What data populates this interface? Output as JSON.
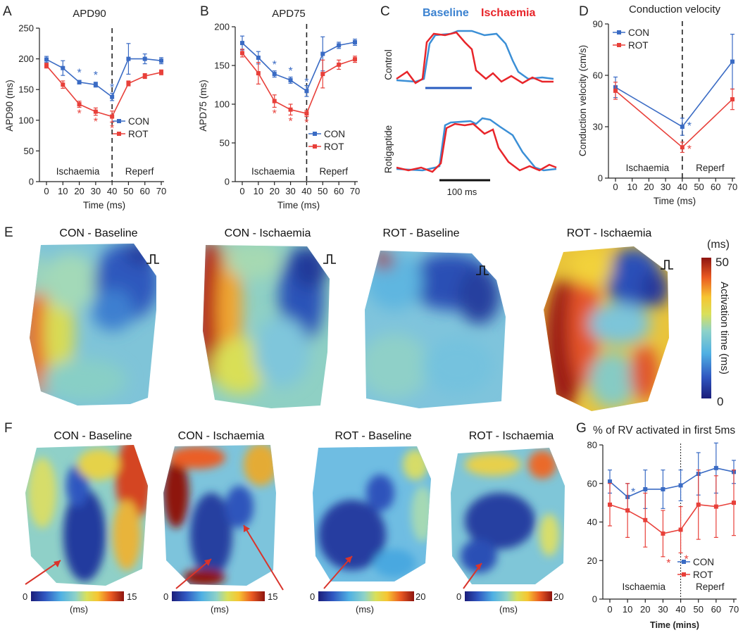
{
  "colors": {
    "con": "#3a6bc4",
    "rot": "#e8403a",
    "baseline_text": "#3b82d0",
    "ischaemia_text": "#e8252a",
    "arrow": "#d9342b"
  },
  "labels": {
    "panelA": "A",
    "panelB": "B",
    "panelC": "C",
    "panelD": "D",
    "panelE": "E",
    "panelF": "F",
    "panelG": "G"
  },
  "panelC": {
    "baseline": "Baseline",
    "ischaemia": "Ischaemia",
    "control": "Control",
    "rotigaptide": "Rotigaptide",
    "scale": "100 ms"
  },
  "panelE": {
    "titles": [
      "CON - Baseline",
      "CON - Ischaemia",
      "ROT - Baseline",
      "ROT - Ischaemia"
    ],
    "cbar_unit": "(ms)",
    "cbar_max": "50",
    "cbar_min": "0",
    "cbar_label": "Activation time (ms)"
  },
  "panelF": {
    "titles": [
      "CON - Baseline",
      "CON - Ischaemia",
      "ROT - Baseline",
      "ROT - Ischaemia"
    ],
    "cbars": [
      {
        "min": "0",
        "max": "15",
        "unit": "(ms)"
      },
      {
        "min": "0",
        "max": "15",
        "unit": "(ms)"
      },
      {
        "min": "0",
        "max": "20",
        "unit": "(ms)"
      },
      {
        "min": "0",
        "max": "20",
        "unit": "(ms)"
      }
    ]
  },
  "chart_data": [
    {
      "id": "A",
      "type": "line",
      "title": "APD90",
      "xlabel": "Time (ms)",
      "ylabel": "APD90 (ms)",
      "x": [
        0,
        10,
        20,
        30,
        40,
        50,
        60,
        70
      ],
      "xlim": [
        0,
        70
      ],
      "ylim": [
        0,
        250
      ],
      "yticks": [
        0,
        50,
        100,
        150,
        200,
        250
      ],
      "series": [
        {
          "name": "CON",
          "values": [
            199,
            185,
            162,
            158,
            138,
            200,
            200,
            197
          ],
          "err": [
            5,
            12,
            3,
            4,
            6,
            25,
            8,
            5
          ]
        },
        {
          "name": "ROT",
          "values": [
            189,
            158,
            126,
            114,
            106,
            160,
            172,
            178
          ],
          "err": [
            4,
            6,
            5,
            6,
            9,
            4,
            4,
            4
          ]
        }
      ],
      "regions": [
        "Ischaemia",
        "Reperf"
      ],
      "divider_x": 40,
      "legend": "center-right"
    },
    {
      "id": "B",
      "type": "line",
      "title": "APD75",
      "xlabel": "Time (ms)",
      "ylabel": "APD75 (ms)",
      "x": [
        0,
        10,
        20,
        30,
        40,
        50,
        60,
        70
      ],
      "xlim": [
        0,
        70
      ],
      "ylim": [
        0,
        200
      ],
      "yticks": [
        0,
        50,
        100,
        150,
        200
      ],
      "series": [
        {
          "name": "CON",
          "values": [
            179,
            160,
            139,
            131,
            117,
            165,
            176,
            180
          ],
          "err": [
            9,
            8,
            4,
            4,
            7,
            22,
            4,
            4
          ]
        },
        {
          "name": "ROT",
          "values": [
            166,
            140,
            104,
            93,
            88,
            139,
            151,
            158
          ],
          "err": [
            5,
            14,
            8,
            7,
            4,
            18,
            6,
            4
          ]
        }
      ],
      "regions": [
        "Ischaemia",
        "Reperf"
      ],
      "divider_x": 40,
      "legend": "center-right"
    },
    {
      "id": "D",
      "type": "line",
      "title": "Conduction velocity",
      "xlabel": "Time (ms)",
      "ylabel": "Conduction velocity (cm/s)",
      "x": [
        0,
        40,
        70
      ],
      "xticks": [
        0,
        10,
        20,
        30,
        40,
        50,
        60,
        70
      ],
      "xlim": [
        0,
        70
      ],
      "ylim": [
        0,
        90
      ],
      "yticks": [
        0,
        30,
        60,
        90
      ],
      "series": [
        {
          "name": "CON",
          "values": [
            53,
            30,
            68
          ],
          "err": [
            6,
            5,
            16
          ]
        },
        {
          "name": "ROT",
          "values": [
            51,
            18,
            46
          ],
          "err": [
            5,
            3,
            6
          ]
        }
      ],
      "regions": [
        "Ischaemia",
        "Reperf"
      ],
      "divider_x": 40,
      "legend": "top-left"
    },
    {
      "id": "G",
      "type": "line",
      "title": "% of RV activated in first 5ms",
      "xlabel": "Time (mins)",
      "ylabel": "",
      "x": [
        0,
        10,
        20,
        30,
        40,
        50,
        60,
        70
      ],
      "xlim": [
        0,
        70
      ],
      "ylim": [
        0,
        80
      ],
      "yticks": [
        0,
        20,
        40,
        60,
        80
      ],
      "series": [
        {
          "name": "CON",
          "values": [
            61,
            53,
            57,
            57,
            59,
            65,
            68,
            66
          ],
          "err": [
            6,
            7,
            10,
            10,
            8,
            11,
            13,
            6
          ]
        },
        {
          "name": "ROT",
          "values": [
            49,
            46,
            41,
            34,
            36,
            49,
            48,
            50
          ],
          "err": [
            11,
            14,
            14,
            12,
            12,
            18,
            16,
            17
          ]
        }
      ],
      "regions": [
        "Ischaemia",
        "Reperf"
      ],
      "divider_x": 40,
      "legend": "bottom-right"
    }
  ]
}
